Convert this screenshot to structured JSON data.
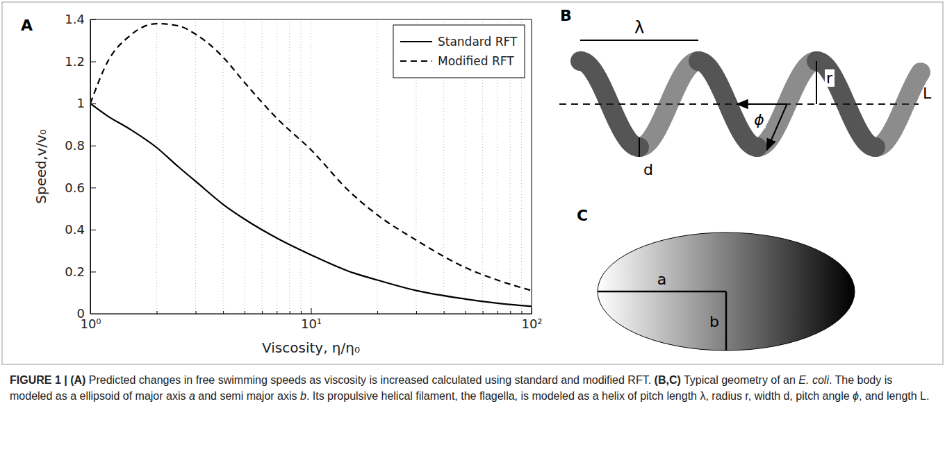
{
  "chart_data": {
    "type": "line",
    "x_label": "Viscosity, η/η₀",
    "y_label": "Speed,v/v₀",
    "x": [
      1,
      1.2,
      1.5,
      2,
      2.5,
      3,
      4,
      5,
      7,
      10,
      15,
      20,
      30,
      50,
      70,
      100
    ],
    "series": [
      {
        "name": "Standard RFT",
        "color": "#000000",
        "line_style": "solid",
        "values": [
          1,
          0.94,
          0.88,
          0.79,
          0.7,
          0.63,
          0.52,
          0.45,
          0.36,
          0.28,
          0.2,
          0.16,
          0.11,
          0.07,
          0.05,
          0.035
        ]
      },
      {
        "name": "Modified RFT",
        "color": "#000000",
        "line_style": "dashed",
        "values": [
          1,
          1.2,
          1.32,
          1.38,
          1.37,
          1.33,
          1.22,
          1.1,
          0.93,
          0.78,
          0.58,
          0.47,
          0.35,
          0.22,
          0.16,
          0.11
        ]
      }
    ],
    "xlim": [
      1,
      100
    ],
    "xticks": [
      {
        "value": 1,
        "label": "10⁰"
      },
      {
        "value": 10,
        "label": "10¹"
      },
      {
        "value": 100,
        "label": "10²"
      }
    ],
    "x_minor_ticks": [
      2,
      3,
      4,
      5,
      6,
      7,
      8,
      9,
      20,
      30,
      40,
      50,
      60,
      70,
      80,
      90
    ],
    "ylim": [
      0,
      1.4
    ],
    "yticks": [
      0,
      0.2,
      0.4,
      0.6,
      0.8,
      1,
      1.2,
      1.4
    ],
    "log": "x",
    "grid": true,
    "legend": "upper right"
  },
  "panel_a": {
    "letter": "A"
  },
  "panel_b": {
    "letter": "B",
    "labels": {
      "wavelength": "λ",
      "radius": "r",
      "length": "L",
      "angle": "ϕ",
      "width": "d"
    }
  },
  "panel_c": {
    "letter": "C",
    "labels": {
      "major": "a",
      "minor": "b"
    }
  },
  "caption": {
    "runs": [
      {
        "text": "FIGURE 1 | ",
        "style": "bold"
      },
      {
        "text": "(A)",
        "style": "bold"
      },
      {
        "text": " Predicted changes in free swimming speeds as viscosity is increased calculated using standard and modified RFT. ",
        "style": "normal"
      },
      {
        "text": "(B,C)",
        "style": "bold"
      },
      {
        "text": " Typical geometry of an ",
        "style": "normal"
      },
      {
        "text": "E. coli",
        "style": "italic"
      },
      {
        "text": ". The body is modeled as a ellipsoid of major axis ",
        "style": "normal"
      },
      {
        "text": "a",
        "style": "italic"
      },
      {
        "text": " and semi major axis ",
        "style": "normal"
      },
      {
        "text": "b",
        "style": "italic"
      },
      {
        "text": ". Its propulsive helical filament, the flagella, is modeled as a helix of pitch length λ, radius r, width d, pitch angle ",
        "style": "normal"
      },
      {
        "text": "ϕ",
        "style": "italic"
      },
      {
        "text": ", and length L.",
        "style": "normal"
      }
    ]
  }
}
